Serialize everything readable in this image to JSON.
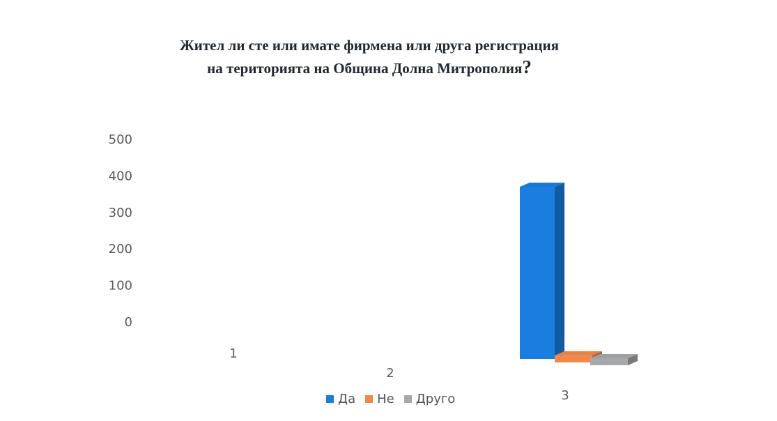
{
  "chart_data": {
    "type": "bar",
    "title": [
      "Жител ли сте или имате фирмена или друга регистрация",
      "на територията на Община Долна Митрополия"
    ],
    "title_suffix": "?",
    "categories": [
      "1",
      "2",
      "3"
    ],
    "series": [
      {
        "name": "Да",
        "color": "#1a7ee0",
        "values": [
          0,
          0,
          390
        ]
      },
      {
        "name": "Не",
        "color": "#ef8a4c",
        "values": [
          0,
          0,
          16
        ]
      },
      {
        "name": "Друго",
        "color": "#a7a8aa",
        "values": [
          0,
          0,
          5
        ]
      }
    ],
    "yticks": [
      "500",
      "400",
      "300",
      "200",
      "100",
      "0"
    ],
    "ylim": [
      0,
      500
    ],
    "grid": false,
    "legend_position": "bottom",
    "style": "3d-column"
  }
}
